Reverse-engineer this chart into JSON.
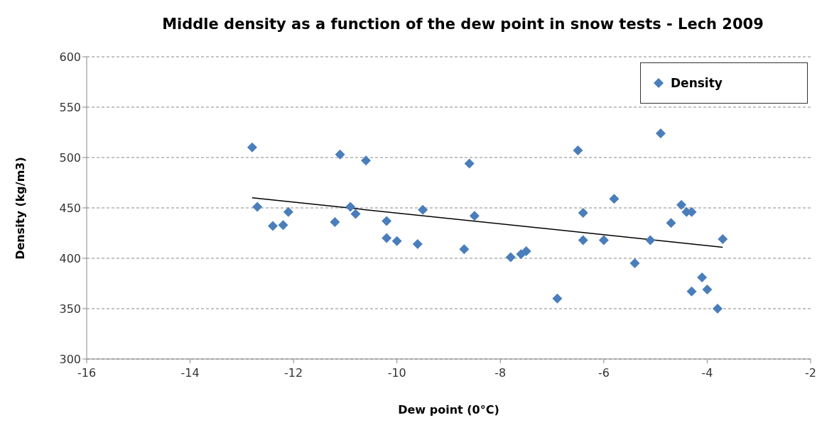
{
  "chart_data": {
    "type": "scatter",
    "title": "Middle density as a function of the dew point in snow tests - Lech 2009",
    "xlabel": "Dew point (0°C)",
    "ylabel": "Density (kg/m3)",
    "xlim": [
      -16,
      -2
    ],
    "xticks": [
      -16,
      -14,
      -12,
      -10,
      -8,
      -6,
      -4,
      -2
    ],
    "ylim": [
      300,
      600
    ],
    "yticks": [
      300,
      350,
      400,
      450,
      500,
      550,
      600
    ],
    "grid": "y",
    "legend": "top right",
    "marker": "diamond",
    "series": [
      {
        "name": "Density",
        "color": "#4a7ebb",
        "x": [
          -12.8,
          -12.7,
          -12.4,
          -12.2,
          -12.1,
          -11.2,
          -11.1,
          -10.9,
          -10.8,
          -10.6,
          -10.2,
          -10.2,
          -10.0,
          -9.6,
          -9.5,
          -8.7,
          -8.6,
          -8.5,
          -7.8,
          -7.6,
          -7.5,
          -6.9,
          -6.5,
          -6.4,
          -6.4,
          -6.0,
          -5.8,
          -5.4,
          -5.1,
          -4.9,
          -4.7,
          -4.5,
          -4.4,
          -4.3,
          -4.3,
          -4.1,
          -4.0,
          -3.8,
          -3.7
        ],
        "values": [
          510,
          451,
          432,
          433,
          446,
          436,
          503,
          451,
          444,
          497,
          437,
          420,
          417,
          414,
          448,
          409,
          494,
          442,
          401,
          404,
          407,
          360,
          507,
          445,
          418,
          418,
          459,
          395,
          418,
          524,
          435,
          453,
          446,
          446,
          367,
          381,
          369,
          350,
          419
        ]
      },
      {
        "type": "line",
        "color": "#000000",
        "marker": "none",
        "x": [
          -12.8,
          -3.7
        ],
        "values": [
          460,
          411
        ]
      }
    ]
  }
}
